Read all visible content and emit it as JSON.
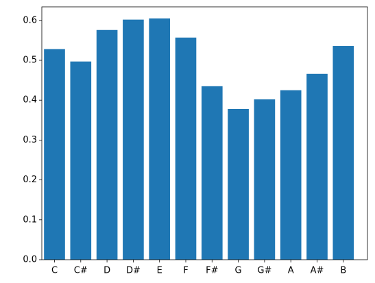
{
  "chart_data": {
    "type": "bar",
    "categories": [
      "C",
      "C#",
      "D",
      "D#",
      "E",
      "F",
      "F#",
      "G",
      "G#",
      "A",
      "A#",
      "B"
    ],
    "values": [
      0.528,
      0.497,
      0.576,
      0.602,
      0.605,
      0.557,
      0.435,
      0.378,
      0.402,
      0.425,
      0.466,
      0.536
    ],
    "color": "#1f77b4",
    "ylim": [
      0,
      0.634
    ],
    "yticks": [
      {
        "value": 0,
        "label": "0.0"
      },
      0.1,
      0.2,
      0.3,
      0.4,
      0.5,
      0.6
    ],
    "grid": false
  }
}
